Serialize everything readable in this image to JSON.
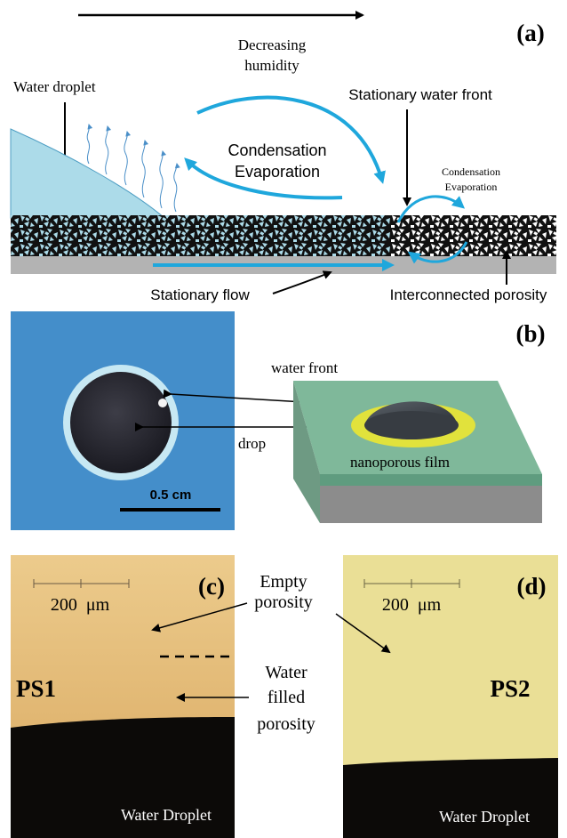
{
  "colors": {
    "water": "#acdbe9",
    "water_edge": "#4f9fc4",
    "arrow_blue": "#1fa7dc",
    "substrate": "#b3b3b3",
    "film_green": "#7fb89a",
    "rim_yellow": "#e1e23c",
    "photo_blue": "#3d87c4",
    "micro_tan": "#e2b675",
    "micro_yellow": "#eadf96"
  },
  "panel_a": {
    "label": "(a)",
    "humidity_label": [
      "Decreasing",
      "humidity"
    ],
    "droplet_label": "Water droplet",
    "cond_evap_big": [
      "Condensation",
      "Evaporation"
    ],
    "front_label": "Stationary water front",
    "cond_evap_small": [
      "Condensation",
      "Evaporation"
    ],
    "flow_label": "Stationary flow",
    "porosity_label": "Interconnected porosity"
  },
  "panel_b": {
    "label": "(b)",
    "water_front_label": "water front",
    "drop_label": "drop",
    "scale_bar_label": "0.5 cm",
    "film_label": "nanoporous film"
  },
  "panel_c": {
    "label": "(c)",
    "scale_label": "200  μm",
    "sample_label": "PS1",
    "droplet_label": "Water Droplet"
  },
  "panel_d": {
    "label": "(d)",
    "scale_label": "200  μm",
    "sample_label": "PS2",
    "droplet_label": "Water Droplet"
  },
  "annotations_cd": {
    "empty": [
      "Empty",
      "porosity"
    ],
    "filled": [
      "Water",
      "filled",
      "porosity"
    ]
  }
}
